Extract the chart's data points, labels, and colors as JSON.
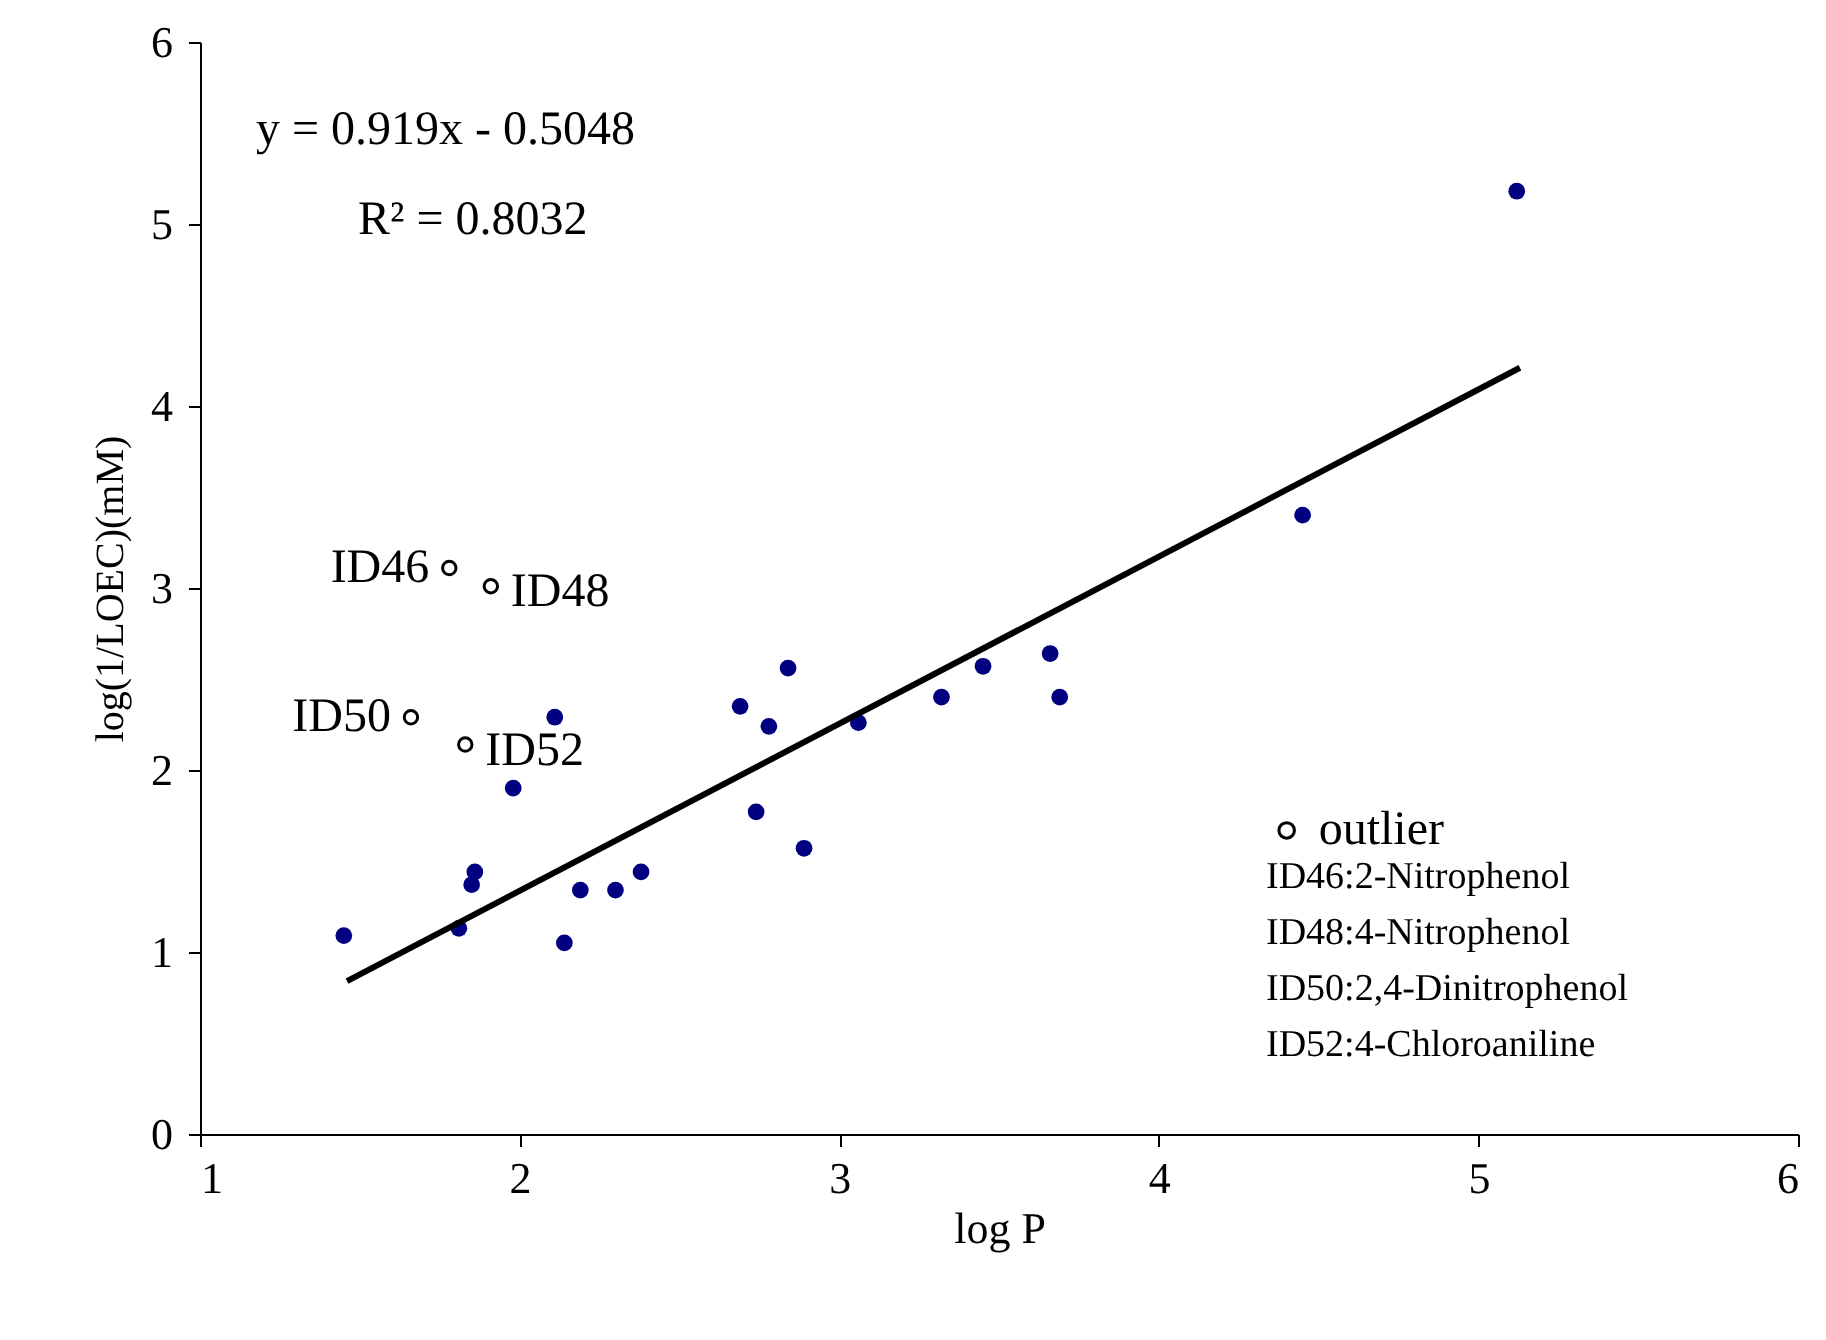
{
  "chart_data": {
    "type": "scatter",
    "xlabel": "log P",
    "ylabel": "log(1/LOEC)(mM)",
    "xlim": [
      1,
      6
    ],
    "xticks": [
      1,
      2,
      3,
      4,
      5,
      6
    ],
    "ylim": [
      0,
      6
    ],
    "yticks": [
      0,
      1,
      2,
      3,
      4,
      5,
      6
    ],
    "grid": false,
    "legend": "bottom right",
    "marker": "circle",
    "series": [
      {
        "color": "#000080",
        "x": [
          1.45,
          1.81,
          1.85,
          1.86,
          1.98,
          2.11,
          2.14,
          2.19,
          2.3,
          2.38,
          2.69,
          2.74,
          2.78,
          2.84,
          2.89,
          3.06,
          3.32,
          3.45,
          3.66,
          3.69,
          4.45,
          5.12
        ],
        "values": [
          1.09,
          1.13,
          1.37,
          1.44,
          1.9,
          2.29,
          1.05,
          1.34,
          1.34,
          1.44,
          2.35,
          1.77,
          2.24,
          2.56,
          1.57,
          2.26,
          2.4,
          2.57,
          2.64,
          2.4,
          3.4,
          5.18
        ]
      },
      {
        "name": "outlier",
        "color": "#000000",
        "x": [
          1.78,
          1.91,
          1.66,
          1.83
        ],
        "values": [
          3.11,
          3.01,
          2.29,
          2.14
        ]
      },
      {
        "type": "line",
        "color": "#000000",
        "line_style": "solid",
        "marker": "none",
        "x": [
          1.46,
          5.13
        ],
        "values": [
          0.84,
          4.21
        ]
      }
    ],
    "annotations": [
      "y = 0.919x - 0.5048",
      "R² = 0.8032",
      {
        "text": "ID46",
        "x": 1.78,
        "y": 3.11
      },
      {
        "text": "ID48",
        "x": 1.91,
        "y": 3.01
      },
      {
        "text": "ID50",
        "x": 1.66,
        "y": 2.29
      },
      {
        "text": "ID52",
        "x": 1.83,
        "y": 2.14
      },
      "ID46:2-Nitrophenol",
      "ID48:4-Nitrophenol",
      "ID50:2,4-Dinitrophenol",
      "ID52:4-Chloroaniline"
    ]
  }
}
